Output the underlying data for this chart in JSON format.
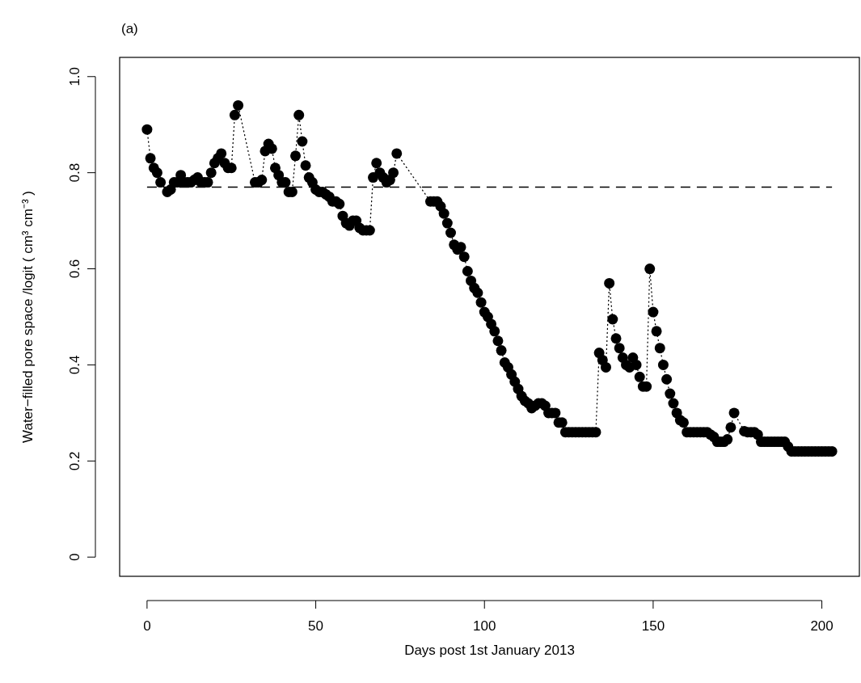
{
  "chart_data": {
    "type": "line",
    "title": "(a)",
    "xlabel": "Days post 1st January 2013",
    "ylabel": "Water−filled pore space /logit ( cm³ cm⁻³ )",
    "xlim": [
      -8.12,
      211.12
    ],
    "xticks": [
      0,
      50,
      100,
      150,
      200
    ],
    "ylim": [
      -0.04,
      1.04
    ],
    "yticks": [
      0,
      0.2,
      0.4,
      0.6,
      0.8,
      {
        "value": 1,
        "label": "1.0"
      }
    ],
    "grid": false,
    "marker": "circle",
    "line_style": "dotted",
    "ref_lines": [
      {
        "axis": "y",
        "value": 0.77,
        "color": "#000000",
        "line_style": "dashed"
      }
    ],
    "series": [
      {
        "color": "#000000",
        "x": [
          0,
          1,
          2,
          3,
          4,
          6,
          7,
          8,
          9,
          10,
          11,
          12,
          13,
          14,
          15,
          16,
          17,
          18,
          19,
          20,
          21,
          22,
          23,
          24,
          25,
          26,
          27,
          32,
          33,
          34,
          35,
          36,
          37,
          38,
          39,
          40,
          41,
          42,
          43,
          44,
          45,
          46,
          47,
          48,
          49,
          50,
          51,
          52,
          53,
          54,
          55,
          56,
          57,
          58,
          59,
          60,
          61,
          62,
          63,
          64,
          65,
          66,
          67,
          68,
          69,
          70,
          71,
          72,
          73,
          74,
          84,
          85,
          86,
          87,
          88,
          89,
          90,
          91,
          92,
          93,
          94,
          95,
          96,
          97,
          98,
          99,
          100,
          101,
          102,
          103,
          104,
          105,
          106,
          107,
          108,
          109,
          110,
          111,
          112,
          113,
          114,
          115,
          116,
          117,
          118,
          119,
          120,
          121,
          122,
          123,
          124,
          125,
          126,
          127,
          128,
          129,
          130,
          131,
          132,
          133,
          134,
          135,
          136,
          137,
          138,
          139,
          140,
          141,
          142,
          143,
          144,
          145,
          146,
          147,
          148,
          149,
          150,
          151,
          152,
          153,
          154,
          155,
          156,
          157,
          158,
          159,
          160,
          161,
          162,
          163,
          164,
          165,
          166,
          167,
          168,
          169,
          170,
          171,
          172,
          173,
          174,
          177,
          178,
          179,
          180,
          181,
          182,
          183,
          184,
          185,
          186,
          187,
          188,
          189,
          190,
          191,
          192,
          193,
          194,
          195,
          196,
          197,
          198,
          199,
          200,
          201,
          202,
          203
        ],
        "values": [
          0.89,
          0.83,
          0.81,
          0.8,
          0.78,
          0.76,
          0.765,
          0.78,
          0.78,
          0.795,
          0.78,
          0.78,
          0.78,
          0.785,
          0.79,
          0.78,
          0.78,
          0.78,
          0.8,
          0.82,
          0.83,
          0.84,
          0.82,
          0.81,
          0.81,
          0.92,
          0.94,
          0.78,
          0.78,
          0.785,
          0.845,
          0.86,
          0.85,
          0.81,
          0.795,
          0.78,
          0.78,
          0.76,
          0.76,
          0.835,
          0.92,
          0.865,
          0.815,
          0.79,
          0.78,
          0.765,
          0.76,
          0.76,
          0.755,
          0.75,
          0.74,
          0.74,
          0.735,
          0.71,
          0.695,
          0.69,
          0.7,
          0.7,
          0.685,
          0.68,
          0.68,
          0.68,
          0.79,
          0.82,
          0.8,
          0.79,
          0.78,
          0.785,
          0.8,
          0.84,
          0.74,
          0.74,
          0.74,
          0.73,
          0.715,
          0.695,
          0.675,
          0.65,
          0.64,
          0.645,
          0.625,
          0.595,
          0.575,
          0.56,
          0.55,
          0.53,
          0.51,
          0.5,
          0.485,
          0.47,
          0.45,
          0.43,
          0.405,
          0.395,
          0.38,
          0.365,
          0.35,
          0.335,
          0.325,
          0.32,
          0.31,
          0.315,
          0.32,
          0.32,
          0.315,
          0.3,
          0.3,
          0.3,
          0.28,
          0.28,
          0.26,
          0.26,
          0.26,
          0.26,
          0.26,
          0.26,
          0.26,
          0.26,
          0.26,
          0.26,
          0.425,
          0.41,
          0.395,
          0.57,
          0.495,
          0.455,
          0.435,
          0.415,
          0.4,
          0.395,
          0.415,
          0.4,
          0.375,
          0.355,
          0.355,
          0.6,
          0.51,
          0.47,
          0.435,
          0.4,
          0.37,
          0.34,
          0.32,
          0.3,
          0.285,
          0.28,
          0.26,
          0.26,
          0.26,
          0.26,
          0.26,
          0.26,
          0.26,
          0.255,
          0.25,
          0.24,
          0.24,
          0.24,
          0.245,
          0.27,
          0.3,
          0.262,
          0.26,
          0.26,
          0.26,
          0.255,
          0.24,
          0.24,
          0.24,
          0.24,
          0.24,
          0.24,
          0.24,
          0.24,
          0.23,
          0.22,
          0.22,
          0.22,
          0.22,
          0.22,
          0.22,
          0.22,
          0.22,
          0.22,
          0.22,
          0.22,
          0.22,
          0.22
        ]
      }
    ]
  }
}
